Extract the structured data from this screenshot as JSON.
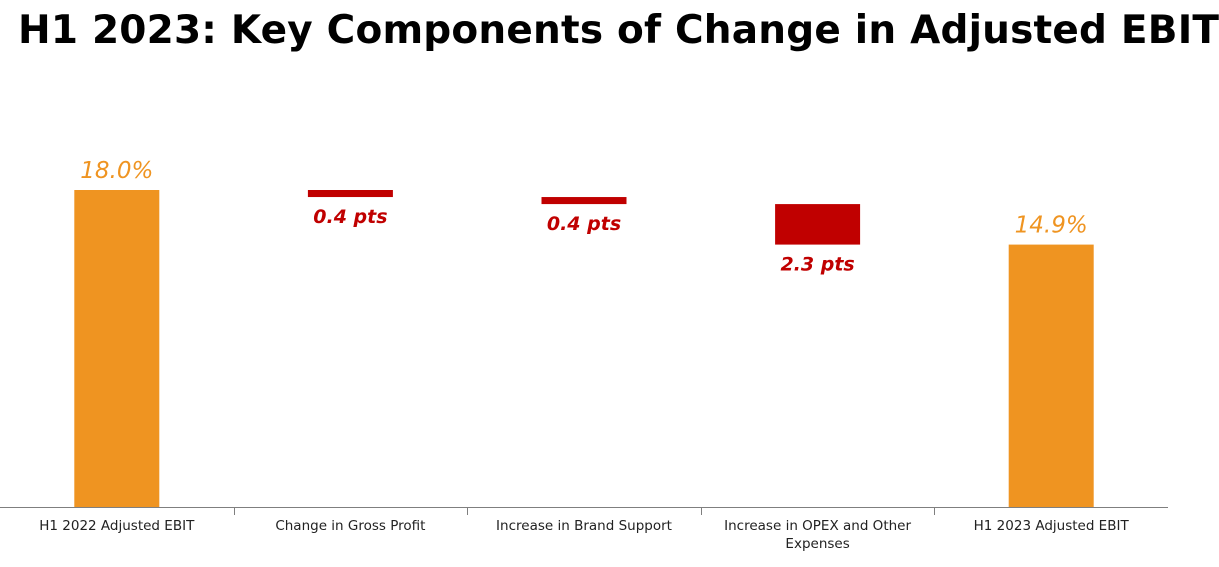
{
  "title": "H1 2023: Key Components of Change in Adjusted EBIT",
  "colors": {
    "total": "#EF9421",
    "decrease": "#C00000",
    "axis": "#7F7F7F"
  },
  "chart_data": {
    "type": "bar",
    "subtype": "waterfall",
    "title": "H1 2023: Key Components of Change in Adjusted EBIT",
    "categories": [
      "H1 2022 Adjusted EBIT",
      "Change in Gross Profit",
      "Increase in Brand Support",
      "Increase in OPEX and Other Expenses",
      "H1 2023 Adjusted EBIT"
    ],
    "values": [
      18.0,
      -0.4,
      -0.4,
      -2.3,
      14.9
    ],
    "kinds": [
      "total",
      "decrease",
      "decrease",
      "decrease",
      "total"
    ],
    "data_labels": [
      "18.0%",
      "0.4 pts",
      "0.4 pts",
      "2.3 pts",
      "14.9%"
    ],
    "ylim": [
      0,
      18.0
    ],
    "grid": false,
    "legend": "none"
  }
}
